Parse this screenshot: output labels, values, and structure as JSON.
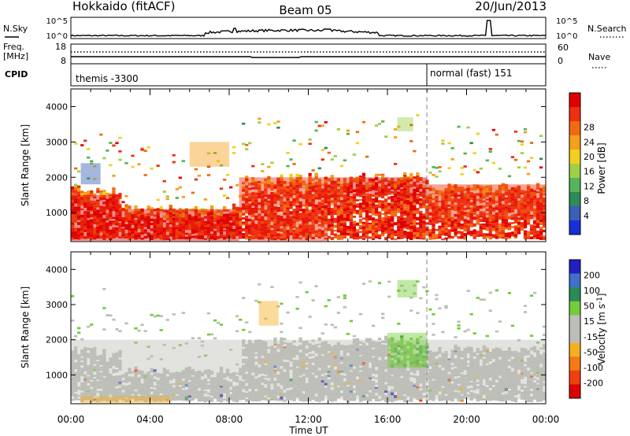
{
  "header": {
    "title": "Hokkaido (fitACF)",
    "beam": "Beam 05",
    "date": "20/Jun/2013"
  },
  "noise_panel": {
    "left_label": "N.Sky",
    "right_label": "N.Search",
    "tick_top": "10^5",
    "tick_bottom": "10^0",
    "right_tick_top": "10^5",
    "right_tick_bottom": "10^0"
  },
  "freq_panel": {
    "left_label_1": "Freq.",
    "left_label_2": "[MHz]",
    "left_tick_top": "18",
    "left_tick_bottom": "8",
    "right_label": "Nave",
    "right_tick_top": "60",
    "right_tick_bottom": "0"
  },
  "cpid_panel": {
    "label": "CPID",
    "mode_1": "themis -3300",
    "mode_2": "normal (fast) 151"
  },
  "chart_data": [
    {
      "type": "heatmap",
      "title": "Power",
      "xlabel": "Time UT",
      "ylabel": "Slant Range [km]",
      "xlim": [
        "00:00",
        "24:00"
      ],
      "ylim": [
        180,
        4500
      ],
      "x_ticks": [
        "00:00",
        "04:00",
        "08:00",
        "12:00",
        "16:00",
        "20:00",
        "00:00"
      ],
      "y_ticks": [
        1000,
        2000,
        3000,
        4000
      ],
      "colorbar": {
        "label": "Power [dB]",
        "ticks": [
          "4",
          "8",
          "12",
          "16",
          "20",
          "24",
          "28"
        ],
        "colors": [
          "#1530d8",
          "#3a5fb4",
          "#2e8a5a",
          "#56b45a",
          "#9ed046",
          "#f2d020",
          "#f4a01a",
          "#f26a10",
          "#ee3010",
          "#e00000"
        ]
      },
      "vertical_marker_time": "18:00",
      "echo_regions": [
        {
          "t0": 0.0,
          "t1": 2.5,
          "r0": 200,
          "r1": 1500,
          "value": 28
        },
        {
          "t0": 2.5,
          "t1": 8.5,
          "r0": 200,
          "r1": 1100,
          "value": 28
        },
        {
          "t0": 8.5,
          "t1": 10.5,
          "r0": 1000,
          "r1": 2000,
          "value": 26
        },
        {
          "t0": 10.5,
          "t1": 14.0,
          "r0": 1200,
          "r1": 2000,
          "value": 26
        },
        {
          "t0": 14.0,
          "t1": 18.0,
          "r0": 1500,
          "r1": 2000,
          "value": 28
        },
        {
          "t0": 18.0,
          "t1": 24.0,
          "r0": 800,
          "r1": 1800,
          "value": 26
        },
        {
          "t0": 9.0,
          "t1": 13.0,
          "r0": 200,
          "r1": 1000,
          "value": 24
        },
        {
          "t0": 6.0,
          "t1": 8.0,
          "r0": 2300,
          "r1": 3000,
          "value": 20
        },
        {
          "t0": 16.5,
          "t1": 17.3,
          "r0": 3300,
          "r1": 3700,
          "value": 12
        },
        {
          "t0": 0.5,
          "t1": 1.5,
          "r0": 1800,
          "r1": 2400,
          "value": 4
        }
      ]
    },
    {
      "type": "heatmap",
      "title": "Velocity",
      "xlabel": "Time UT",
      "ylabel": "Slant Range [km]",
      "xlim": [
        "00:00",
        "24:00"
      ],
      "ylim": [
        180,
        4500
      ],
      "x_ticks": [
        "00:00",
        "04:00",
        "08:00",
        "12:00",
        "16:00",
        "20:00",
        "00:00"
      ],
      "y_ticks": [
        1000,
        2000,
        3000,
        4000
      ],
      "colorbar": {
        "label": "Velocity [m s^-1]",
        "ticks": [
          "200",
          "100",
          "50",
          "15",
          "-15",
          "-50",
          "-100",
          "-200"
        ],
        "colors": [
          "#2020c0",
          "#4070c8",
          "#2a8a58",
          "#74cc3a",
          "#bebeb8",
          "#bebeb8",
          "#f4b020",
          "#f47a14",
          "#f04010",
          "#e00000"
        ]
      },
      "vertical_marker_time": "18:00",
      "echo_regions": [
        {
          "t0": 0.0,
          "t1": 24.0,
          "r0": 300,
          "r1": 2000,
          "value": 0
        },
        {
          "t0": 16.0,
          "t1": 18.0,
          "r0": 1200,
          "r1": 2200,
          "value": 40
        },
        {
          "t0": 16.5,
          "t1": 17.5,
          "r0": 3200,
          "r1": 3700,
          "value": 30
        },
        {
          "t0": 9.5,
          "t1": 10.5,
          "r0": 2400,
          "r1": 3100,
          "value": -60
        },
        {
          "t0": 0.5,
          "t1": 5.0,
          "r0": 200,
          "r1": 400,
          "value": -80
        }
      ]
    }
  ]
}
